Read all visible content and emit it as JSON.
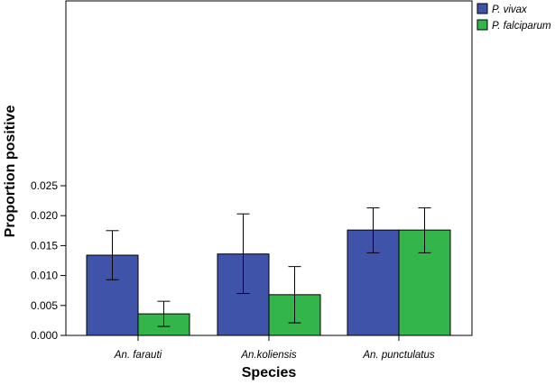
{
  "chart_data": {
    "type": "bar",
    "categories": [
      "An. farauti",
      "An.koliensis",
      "An. punctulatus"
    ],
    "series": [
      {
        "name": "P. vivax",
        "color": "#3f54a8",
        "values": [
          0.0134,
          0.0136,
          0.0176
        ],
        "err_low": [
          0.0093,
          0.007,
          0.0138
        ],
        "err_high": [
          0.0175,
          0.0203,
          0.0213
        ]
      },
      {
        "name": "P. falciparum",
        "color": "#33b54a",
        "values": [
          0.0036,
          0.0068,
          0.0176
        ],
        "err_low": [
          0.0015,
          0.0021,
          0.0138
        ],
        "err_high": [
          0.0057,
          0.0115,
          0.0213
        ]
      }
    ],
    "xlabel": "Species",
    "ylabel": "Proportion positive",
    "ylim": [
      0,
      0.028
    ],
    "yticks": [
      "0.000",
      "0.005",
      "0.010",
      "0.015",
      "0.020",
      "0.025"
    ],
    "ytick_values": [
      0,
      0.005,
      0.01,
      0.015,
      0.02,
      0.025
    ],
    "legend": "top-right",
    "grid": false
  }
}
